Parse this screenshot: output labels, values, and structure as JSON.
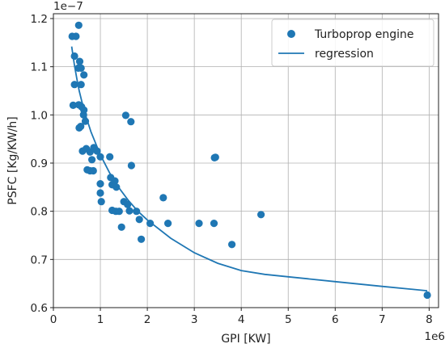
{
  "chart_data": {
    "type": "scatter",
    "xlabel": "GPI [KW]",
    "ylabel": "PSFC [Kg/KW/h]",
    "x_offset_label": "1e6",
    "y_offset_label": "1e−7",
    "x_scale": 1000000,
    "y_scale": 1e-07,
    "xlim": [
      0,
      8200000
    ],
    "ylim": [
      6e-08,
      1.21e-07
    ],
    "x_ticks": [
      0,
      1000000,
      2000000,
      3000000,
      4000000,
      5000000,
      6000000,
      7000000,
      8000000
    ],
    "x_tick_labels": [
      "0",
      "1",
      "2",
      "3",
      "4",
      "5",
      "6",
      "7",
      "8"
    ],
    "y_ticks": [
      6e-08,
      7e-08,
      8e-08,
      9e-08,
      1e-07,
      1.1e-07,
      1.2e-07
    ],
    "y_tick_labels": [
      "0.6",
      "0.7",
      "0.8",
      "0.9",
      "1.0",
      "1.1",
      "1.2"
    ],
    "grid": true,
    "legend_position": "top-right",
    "color": "#1f77b4",
    "series": [
      {
        "name": "Turboprop engine",
        "kind": "scatter",
        "points": [
          [
            400000,
            1.163e-07
          ],
          [
            480000,
            1.163e-07
          ],
          [
            540000,
            1.186e-07
          ],
          [
            450000,
            1.122e-07
          ],
          [
            530000,
            1.097e-07
          ],
          [
            560000,
            1.111e-07
          ],
          [
            590000,
            1.097e-07
          ],
          [
            450000,
            1.063e-07
          ],
          [
            590000,
            1.063e-07
          ],
          [
            650000,
            1.083e-07
          ],
          [
            420000,
            1.02e-07
          ],
          [
            540000,
            1.021e-07
          ],
          [
            600000,
            1.017e-07
          ],
          [
            650000,
            1.01e-07
          ],
          [
            640000,
            1e-07
          ],
          [
            680000,
            9.87e-08
          ],
          [
            550000,
            9.73e-08
          ],
          [
            580000,
            9.76e-08
          ],
          [
            620000,
            9.25e-08
          ],
          [
            700000,
            9.3e-08
          ],
          [
            780000,
            9.23e-08
          ],
          [
            860000,
            9.32e-08
          ],
          [
            930000,
            9.25e-08
          ],
          [
            1000000,
            9.13e-08
          ],
          [
            1200000,
            9.13e-08
          ],
          [
            820000,
            9.07e-08
          ],
          [
            720000,
            8.86e-08
          ],
          [
            780000,
            8.84e-08
          ],
          [
            850000,
            8.84e-08
          ],
          [
            1000000,
            8.57e-08
          ],
          [
            1000000,
            8.38e-08
          ],
          [
            1020000,
            8.2e-08
          ],
          [
            1220000,
            8.7e-08
          ],
          [
            1250000,
            8.55e-08
          ],
          [
            1310000,
            8.63e-08
          ],
          [
            1340000,
            8.5e-08
          ],
          [
            1250000,
            8.02e-08
          ],
          [
            1330000,
            8e-08
          ],
          [
            1400000,
            8e-08
          ],
          [
            1500000,
            8.2e-08
          ],
          [
            1580000,
            8.14e-08
          ],
          [
            1620000,
            8.01e-08
          ],
          [
            1770000,
            8e-08
          ],
          [
            1830000,
            7.83e-08
          ],
          [
            1450000,
            7.67e-08
          ],
          [
            1540000,
            9.99e-08
          ],
          [
            1650000,
            9.86e-08
          ],
          [
            1660000,
            8.95e-08
          ],
          [
            1870000,
            7.42e-08
          ],
          [
            2060000,
            7.75e-08
          ],
          [
            2340000,
            8.28e-08
          ],
          [
            2440000,
            7.75e-08
          ],
          [
            3100000,
            7.75e-08
          ],
          [
            3420000,
            7.75e-08
          ],
          [
            3430000,
            9.11e-08
          ],
          [
            3450000,
            9.12e-08
          ],
          [
            3800000,
            7.31e-08
          ],
          [
            4420000,
            7.93e-08
          ],
          [
            7960000,
            6.26e-08
          ]
        ]
      },
      {
        "name": "regression",
        "kind": "line",
        "points": [
          [
            390000,
            1.142e-07
          ],
          [
            450000,
            1.102e-07
          ],
          [
            500000,
            1.075e-07
          ],
          [
            550000,
            1.05e-07
          ],
          [
            600000,
            1.03e-07
          ],
          [
            700000,
            9.95e-08
          ],
          [
            800000,
            9.65e-08
          ],
          [
            1000000,
            9.17e-08
          ],
          [
            1200000,
            8.79e-08
          ],
          [
            1400000,
            8.48e-08
          ],
          [
            1600000,
            8.22e-08
          ],
          [
            1800000,
            8e-08
          ],
          [
            2000000,
            7.82e-08
          ],
          [
            2500000,
            7.44e-08
          ],
          [
            3000000,
            7.14e-08
          ],
          [
            3500000,
            6.92e-08
          ],
          [
            4000000,
            6.77e-08
          ],
          [
            4500000,
            6.69e-08
          ],
          [
            5000000,
            6.64e-08
          ],
          [
            6000000,
            6.54e-08
          ],
          [
            7000000,
            6.44e-08
          ],
          [
            7960000,
            6.35e-08
          ]
        ]
      }
    ]
  }
}
